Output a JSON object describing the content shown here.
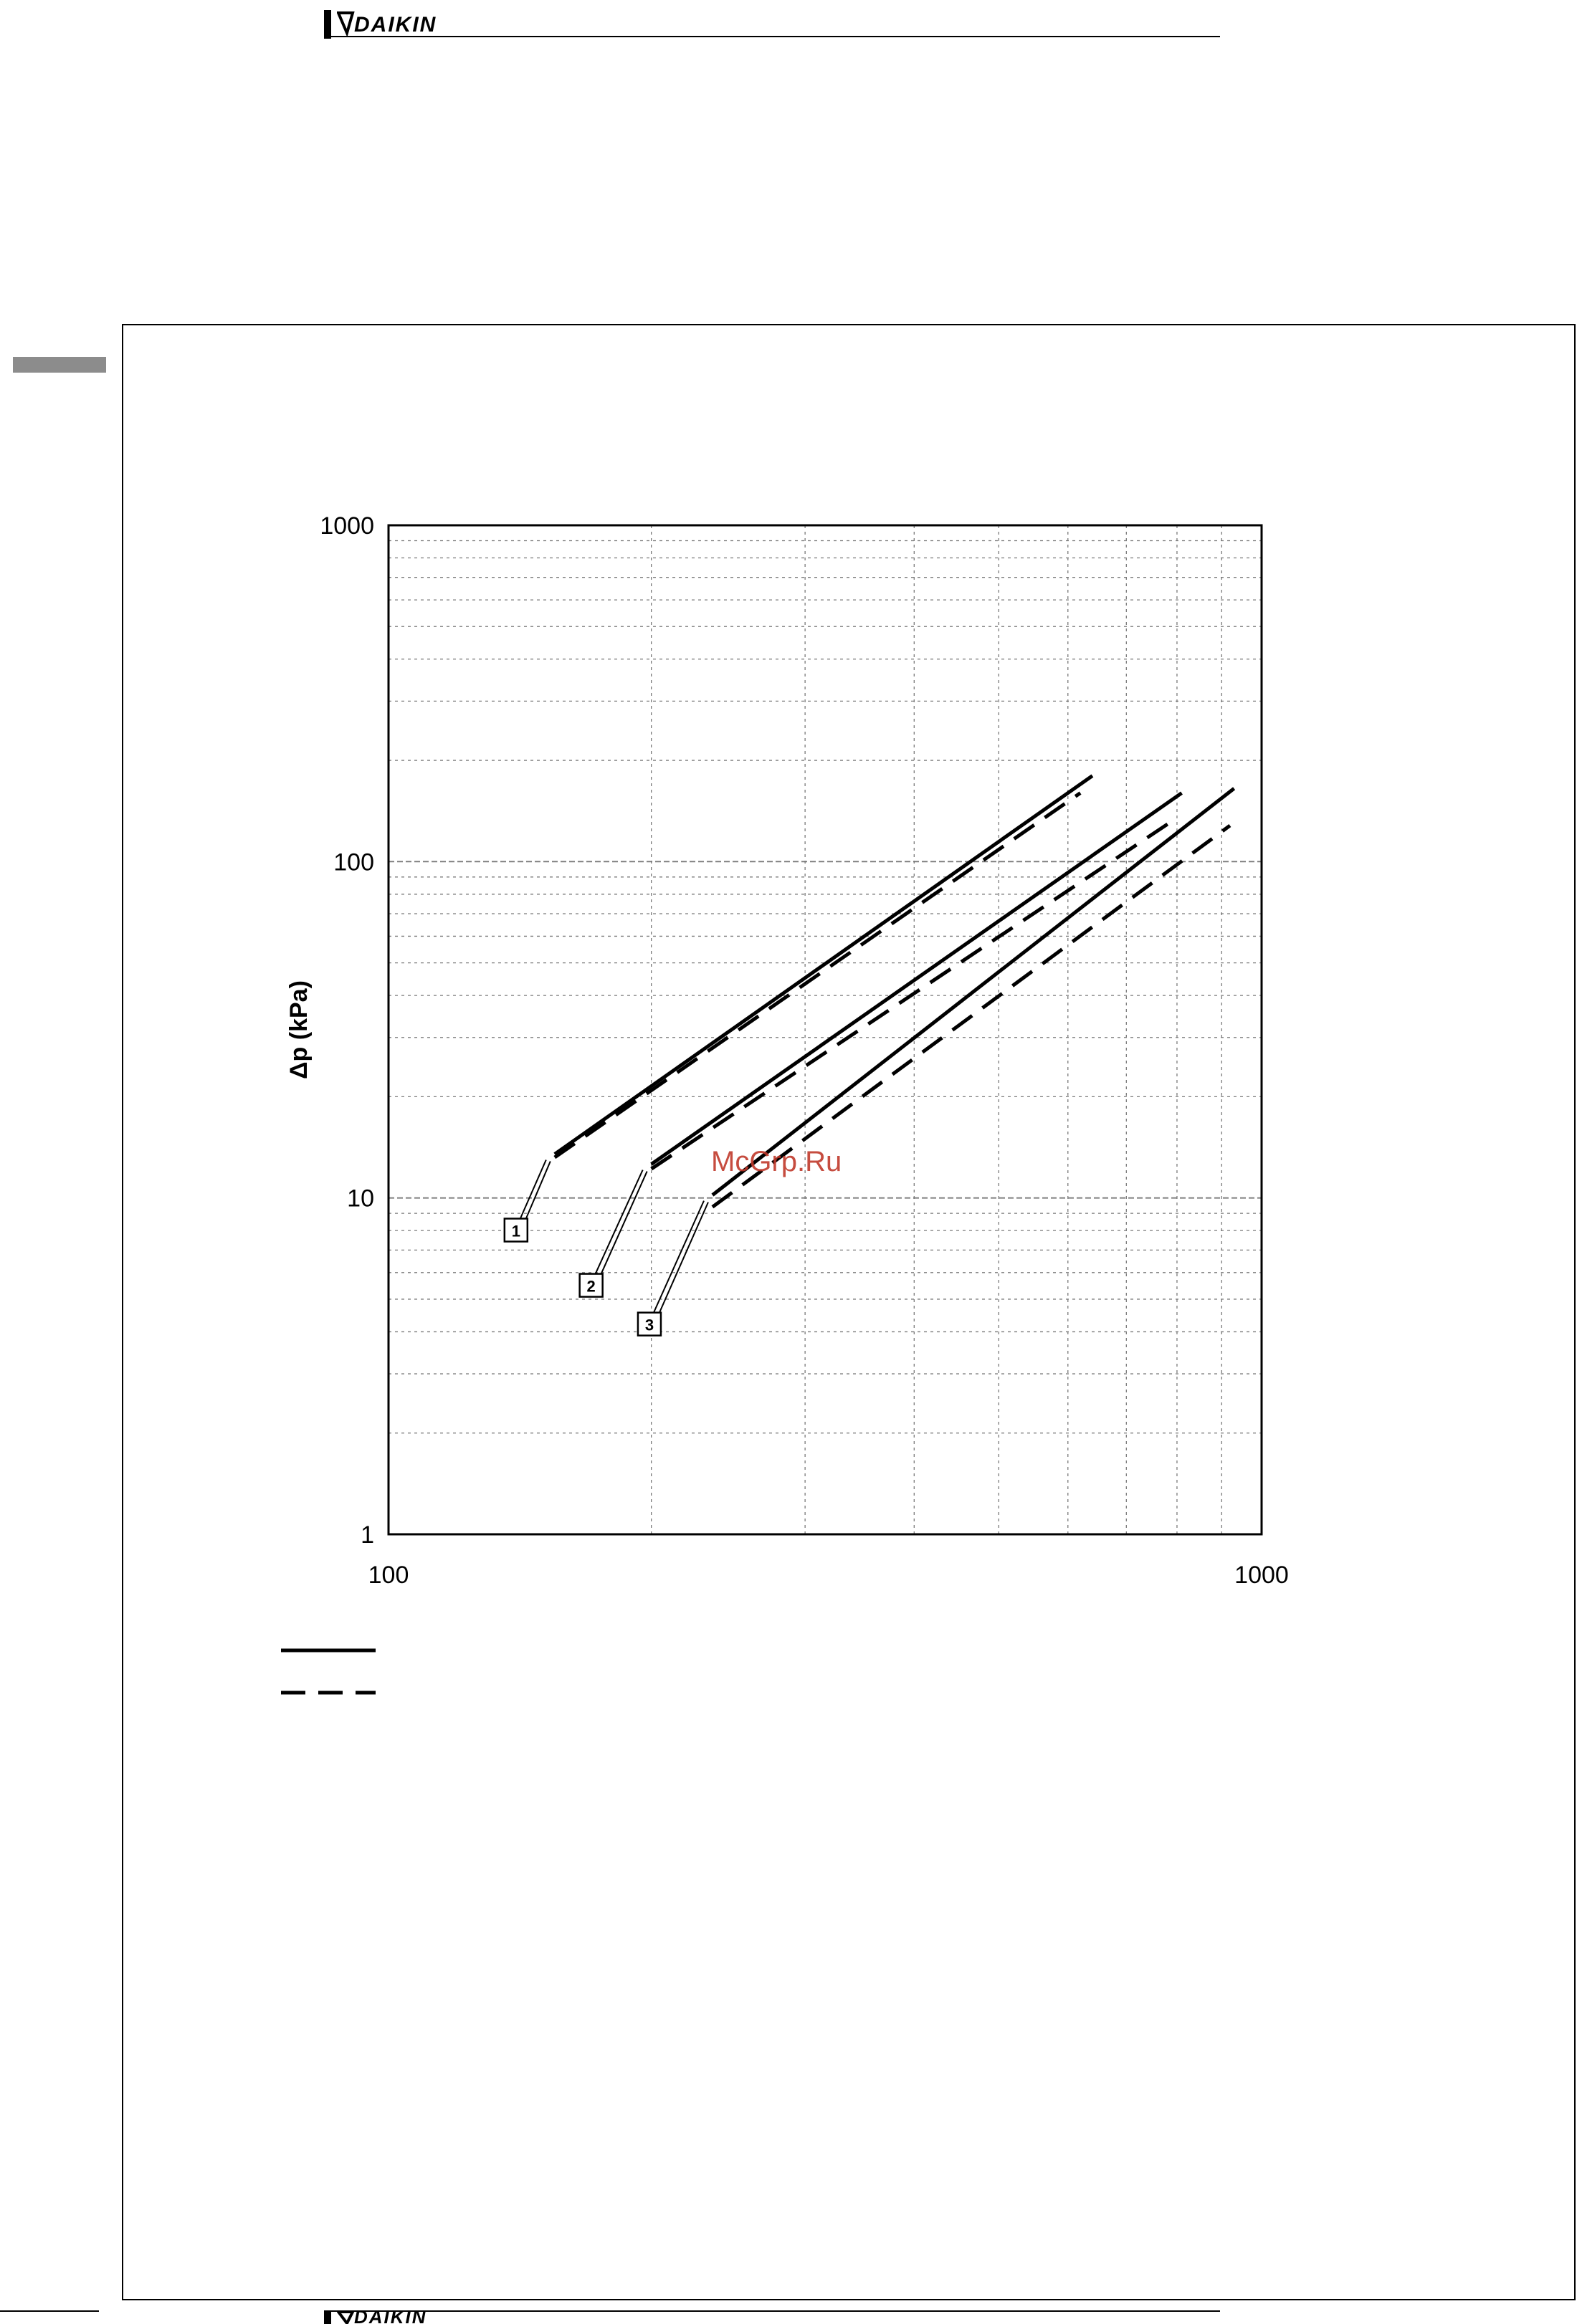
{
  "header": {
    "brand": "DAIKIN"
  },
  "footer": {
    "brand": "DAIKIN"
  },
  "watermark": "McGrp.Ru",
  "colors": {
    "ink": "#000000",
    "grid": "#7a7a7a",
    "watermark": "#c0392b",
    "tab": "#8c8c8c"
  },
  "chart_data": {
    "type": "line",
    "x_scale": "log",
    "y_scale": "log",
    "xlim": [
      100,
      1000
    ],
    "ylim": [
      1,
      1000
    ],
    "x_ticks": [
      "100",
      "1000"
    ],
    "y_ticks": [
      "1",
      "10",
      "100",
      "1000"
    ],
    "ylabel": "Δp (kPa)",
    "xlabel": "",
    "grid": true,
    "legend": {
      "placement": "bottom-left",
      "entries": [
        {
          "style": "solid"
        },
        {
          "style": "dashed"
        }
      ]
    },
    "series": [
      {
        "label": "1",
        "style": "solid",
        "x": [
          155,
          640
        ],
        "y": [
          13.5,
          180
        ]
      },
      {
        "label": "1",
        "style": "dashed",
        "x": [
          155,
          620
        ],
        "y": [
          13.2,
          160
        ]
      },
      {
        "label": "2",
        "style": "solid",
        "x": [
          200,
          810
        ],
        "y": [
          12.6,
          160
        ]
      },
      {
        "label": "2",
        "style": "dashed",
        "x": [
          200,
          800
        ],
        "y": [
          12.2,
          135
        ]
      },
      {
        "label": "3",
        "style": "solid",
        "x": [
          235,
          930
        ],
        "y": [
          10.2,
          165
        ]
      },
      {
        "label": "3",
        "style": "dashed",
        "x": [
          235,
          920
        ],
        "y": [
          9.4,
          128
        ]
      }
    ],
    "callouts": [
      {
        "label": "1",
        "anchor_x": 155,
        "anchor_y": 13.5
      },
      {
        "label": "2",
        "anchor_x": 200,
        "anchor_y": 12.6
      },
      {
        "label": "3",
        "anchor_x": 235,
        "anchor_y": 10.2
      }
    ]
  }
}
